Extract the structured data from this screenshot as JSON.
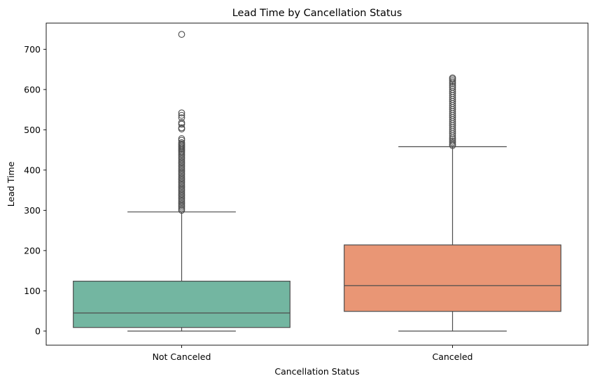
{
  "chart_data": {
    "type": "box",
    "title": "Lead Time by Cancellation Status",
    "xlabel": "Cancellation Status",
    "ylabel": "Lead Time",
    "categories": [
      "Not Canceled",
      "Canceled"
    ],
    "ylim": [
      -35,
      765
    ],
    "yticks": [
      0,
      100,
      200,
      300,
      400,
      500,
      600,
      700
    ],
    "grid": false,
    "legend": "none",
    "colors": {
      "Not Canceled": "#73b6a1",
      "Canceled": "#e99675",
      "line": "#4d4d4d"
    },
    "boxes": [
      {
        "category": "Not Canceled",
        "whisker_low": 0,
        "q1": 9,
        "median": 45,
        "q3": 124,
        "whisker_high": 296,
        "outliers": [
          737,
          542,
          536,
          530,
          518,
          514,
          505,
          502,
          478,
          474,
          468,
          465,
          462,
          459,
          456,
          453,
          450,
          447,
          444,
          440,
          436,
          432,
          428,
          424,
          420,
          416,
          412,
          408,
          404,
          400,
          396,
          392,
          388,
          384,
          380,
          376,
          372,
          368,
          364,
          360,
          356,
          352,
          348,
          344,
          340,
          336,
          332,
          328,
          324,
          320,
          316,
          312,
          308,
          304,
          300
        ]
      },
      {
        "category": "Canceled",
        "whisker_low": 0,
        "q1": 49,
        "median": 113,
        "q3": 214,
        "whisker_high": 458,
        "outliers": [
          629,
          626,
          622,
          618,
          614,
          609,
          605,
          600,
          595,
          590,
          585,
          580,
          575,
          570,
          565,
          560,
          555,
          550,
          545,
          540,
          535,
          530,
          525,
          520,
          515,
          510,
          505,
          500,
          495,
          490,
          485,
          480,
          476,
          472,
          468,
          464,
          461
        ]
      }
    ]
  }
}
